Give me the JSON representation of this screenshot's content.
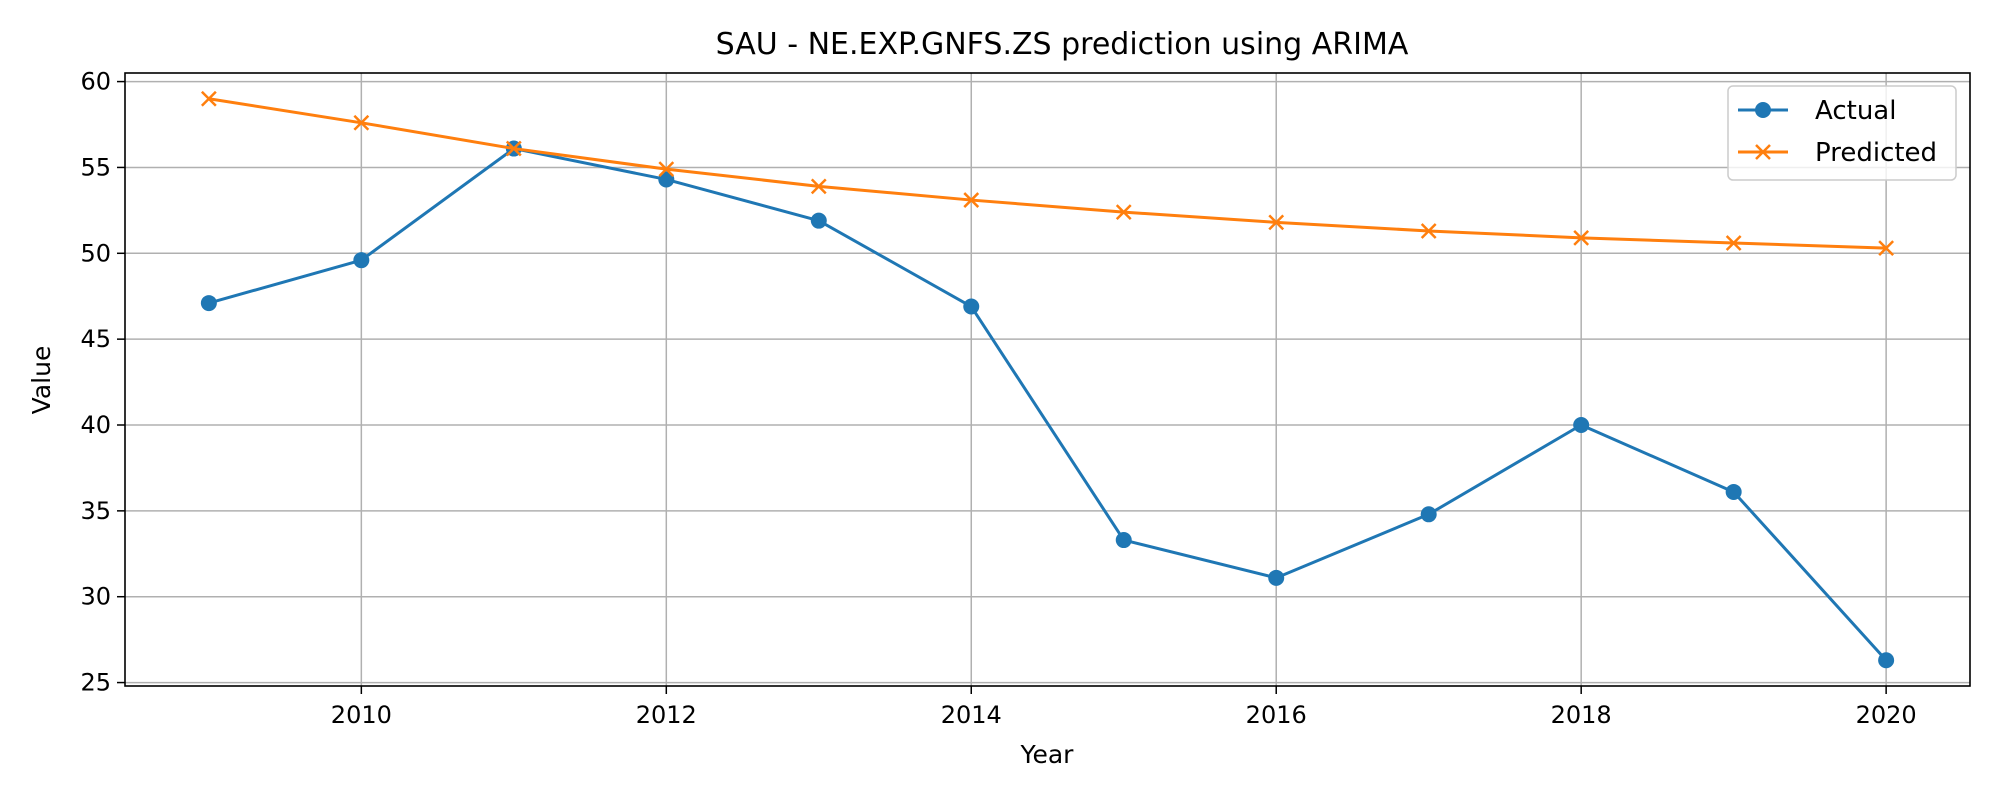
{
  "chart_data": {
    "type": "line",
    "title": "SAU - NE.EXP.GNFS.ZS prediction using ARIMA",
    "xlabel": "Year",
    "ylabel": "Value",
    "x": [
      2009,
      2010,
      2011,
      2012,
      2013,
      2014,
      2015,
      2016,
      2017,
      2018,
      2019,
      2020
    ],
    "series": [
      {
        "name": "Actual",
        "color": "#1f77b4",
        "marker": "circle",
        "values": [
          47.1,
          49.6,
          56.1,
          54.3,
          51.9,
          46.9,
          33.3,
          31.1,
          34.8,
          40.0,
          36.1,
          26.3
        ]
      },
      {
        "name": "Predicted",
        "color": "#ff7f0e",
        "marker": "x",
        "values": [
          59.0,
          57.6,
          56.1,
          54.9,
          53.9,
          53.1,
          52.4,
          51.8,
          51.3,
          50.9,
          50.6,
          50.3
        ]
      }
    ],
    "xlim": [
      2008.45,
      2020.55
    ],
    "ylim": [
      24.8,
      60.5
    ],
    "xticks": [
      2010,
      2012,
      2014,
      2016,
      2018,
      2020
    ],
    "yticks": [
      25,
      30,
      35,
      40,
      45,
      50,
      55,
      60
    ],
    "grid": true,
    "legend_position": "upper right"
  }
}
